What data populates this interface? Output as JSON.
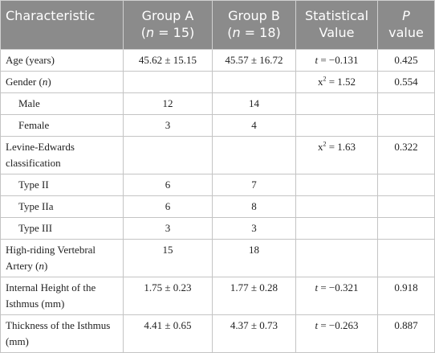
{
  "table": {
    "header": [
      [
        {
          "t": "Characteristic"
        }
      ],
      [
        {
          "t": "Group A"
        },
        {
          "t": "(",
          "f": "br"
        },
        {
          "t": "n",
          "f": "i"
        },
        {
          "t": " = 15)"
        }
      ],
      [
        {
          "t": "Group B"
        },
        {
          "t": "(",
          "f": "br"
        },
        {
          "t": "n",
          "f": "i"
        },
        {
          "t": " = 18)"
        }
      ],
      [
        {
          "t": "Statistical"
        },
        {
          "t": "Value",
          "f": "br"
        }
      ],
      [
        {
          "t": "P",
          "f": "i"
        },
        {
          "t": "value",
          "f": "br"
        }
      ]
    ],
    "rows": [
      {
        "cells": [
          "Age (years)",
          "45.62 ± 15.15",
          "45.57 ± 16.72",
          [
            {
              "t": "t",
              "f": "i"
            },
            {
              "t": " = −0.131"
            }
          ],
          "0.425"
        ]
      },
      {
        "cells": [
          [
            {
              "t": "Gender ("
            },
            {
              "t": "n",
              "f": "i"
            },
            {
              "t": ")"
            }
          ],
          null,
          null,
          [
            {
              "t": "x"
            },
            {
              "t": "2",
              "f": "sup"
            },
            {
              "t": " = 1.52"
            }
          ],
          "0.554"
        ]
      },
      {
        "indent": true,
        "cells": [
          "Male",
          "12",
          "14",
          null,
          null
        ]
      },
      {
        "indent": true,
        "cells": [
          "Female",
          "3",
          "4",
          null,
          null
        ]
      },
      {
        "cells": [
          "Levine-Edwards classification",
          null,
          null,
          [
            {
              "t": "x"
            },
            {
              "t": "2",
              "f": "sup"
            },
            {
              "t": " = 1.63"
            }
          ],
          "0.322"
        ]
      },
      {
        "indent": true,
        "cells": [
          "Type II",
          "6",
          "7",
          null,
          null
        ]
      },
      {
        "indent": true,
        "cells": [
          "Type IIa",
          "6",
          "8",
          null,
          null
        ]
      },
      {
        "indent": true,
        "cells": [
          "Type III",
          "3",
          "3",
          null,
          null
        ]
      },
      {
        "cells": [
          [
            {
              "t": "High-riding Vertebral Artery ("
            },
            {
              "t": "n",
              "f": "i"
            },
            {
              "t": ")"
            }
          ],
          "15",
          "18",
          null,
          null
        ]
      },
      {
        "cells": [
          "Internal Height of the Isthmus (mm)",
          "1.75 ± 0.23",
          "1.77 ± 0.28",
          [
            {
              "t": "t",
              "f": "i"
            },
            {
              "t": " = −0.321"
            }
          ],
          "0.918"
        ]
      },
      {
        "cells": [
          "Thickness of the Isthmus (mm)",
          "4.41 ± 0.65",
          "4.37 ± 0.73",
          [
            {
              "t": "t",
              "f": "i"
            },
            {
              "t": " = −0.263"
            }
          ],
          "0.887"
        ]
      }
    ]
  }
}
